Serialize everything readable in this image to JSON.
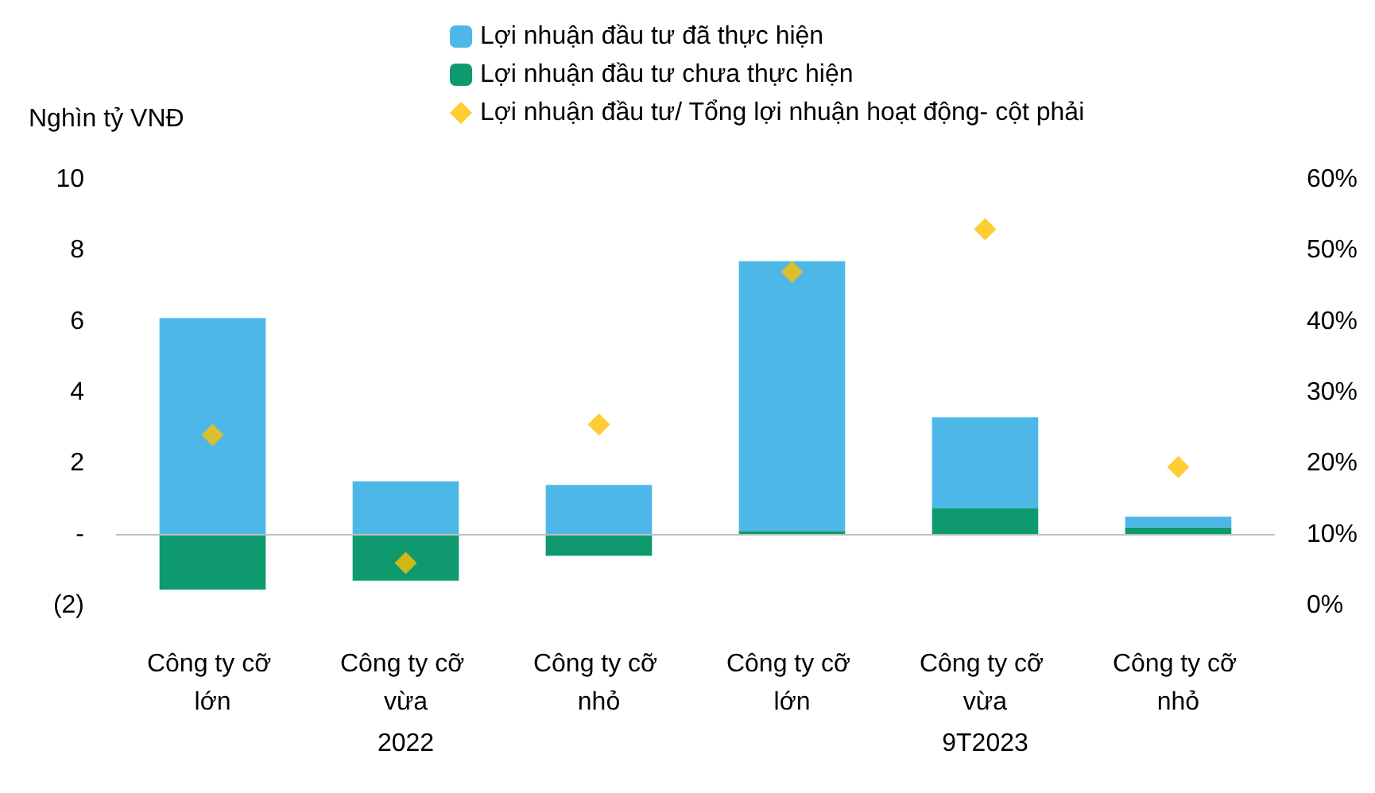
{
  "chart_data": {
    "type": "bar",
    "ylabel": "Nghìn tỷ VNĐ",
    "stacked": true,
    "categories": [
      "Công ty cỡ lớn",
      "Công ty cỡ vừa",
      "Công ty cỡ nhỏ",
      "Công ty cỡ lớn",
      "Công ty cỡ vừa",
      "Công ty cỡ nhỏ"
    ],
    "series": [
      {
        "name": "Lợi nhuận đầu tư chưa thực hiện",
        "color": "#0e9a6e",
        "values": [
          -1.55,
          -1.3,
          -0.6,
          0.1,
          0.75,
          0.2
        ]
      },
      {
        "name": "Lợi nhuận đầu tư đã thực hiện",
        "color": "#4db8e8",
        "values": [
          6.1,
          1.5,
          1.4,
          7.6,
          2.55,
          0.3
        ]
      },
      {
        "name": "Lợi nhuận đầu tư/ Tổng lợi nhuận hoạt động- cột phải",
        "type": "scatter",
        "axis": "y2",
        "marker": "diamond",
        "color": "#ffc000",
        "values": [
          24,
          6,
          25.5,
          47,
          53,
          19.5
        ]
      }
    ],
    "ylim": [
      -2,
      10
    ],
    "yticks": [
      {
        "value": -2,
        "label": "(2)"
      },
      {
        "value": 0,
        "label": "-"
      },
      2,
      4,
      6,
      8,
      10
    ],
    "y2lim": [
      0,
      60
    ],
    "y2ticks": [
      {
        "value": 0,
        "label": "0%"
      },
      {
        "value": 10,
        "label": "10%"
      },
      {
        "value": 20,
        "label": "20%"
      },
      {
        "value": 30,
        "label": "30%"
      },
      {
        "value": 40,
        "label": "40%"
      },
      {
        "value": 50,
        "label": "50%"
      },
      {
        "value": 60,
        "label": "60%"
      }
    ],
    "annotations": [
      "2022",
      "9T2023"
    ],
    "ref_lines": [
      {
        "axis": "y",
        "value": 0,
        "color": "#bfbfbf"
      }
    ],
    "grid": false,
    "legend": "top"
  }
}
